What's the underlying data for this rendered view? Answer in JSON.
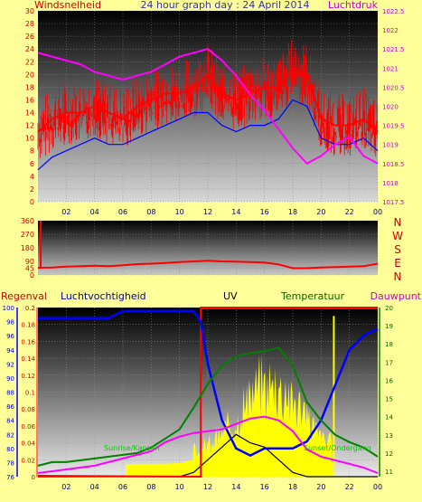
{
  "chart_data": [
    {
      "type": "line",
      "title": "24 hour graph day : 24 April 2014",
      "ylabel_left": "Windsnelheid",
      "ylabel_right": "Luchtdruk",
      "x_ticks": [
        "02",
        "04",
        "06",
        "08",
        "10",
        "12",
        "14",
        "16",
        "18",
        "20",
        "22",
        "00"
      ],
      "y_left_ticks": [
        "0",
        "2",
        "4",
        "6",
        "8",
        "10",
        "12",
        "14",
        "16",
        "18",
        "20",
        "22",
        "24",
        "26",
        "28",
        "30"
      ],
      "y_left_top_label": "30",
      "y_right_ticks": [
        "1017.5",
        "1018",
        "1018.5",
        "1019",
        "1019.5",
        "1020",
        "1020.5",
        "1021",
        "1021.5",
        "1022",
        "1022.5"
      ],
      "y_left_range": [
        0,
        30
      ],
      "y_right_range": [
        1017.5,
        1022.5
      ],
      "grid": true,
      "series": [
        {
          "name": "Windsnelheid",
          "color": "#ff0000",
          "x": [
            0,
            1,
            2,
            3,
            4,
            5,
            6,
            7,
            8,
            9,
            10,
            11,
            12,
            13,
            14,
            15,
            16,
            17,
            18,
            19,
            20,
            21,
            22,
            23,
            24
          ],
          "values": [
            11,
            13,
            14,
            14,
            15,
            14,
            13,
            15,
            16,
            17,
            17,
            18,
            20,
            17,
            16,
            17,
            18,
            18,
            21,
            20,
            13,
            12,
            12,
            13,
            11
          ]
        },
        {
          "color": "#0000ff",
          "x": [
            0,
            1,
            2,
            3,
            4,
            5,
            6,
            7,
            8,
            9,
            10,
            11,
            12,
            13,
            14,
            15,
            16,
            17,
            18,
            19,
            20,
            21,
            22,
            23,
            24
          ],
          "values": [
            5,
            7,
            8,
            9,
            10,
            9,
            9,
            10,
            11,
            12,
            13,
            14,
            14,
            12,
            11,
            12,
            12,
            13,
            16,
            15,
            10,
            9,
            9,
            10,
            8
          ]
        },
        {
          "name": "Luchtdruk",
          "color": "#ff00ff",
          "x": [
            0,
            1,
            2,
            3,
            4,
            5,
            6,
            7,
            8,
            9,
            10,
            11,
            12,
            13,
            14,
            15,
            16,
            17,
            18,
            19,
            20,
            21,
            22,
            23,
            24
          ],
          "values": [
            1021.4,
            1021.3,
            1021.2,
            1021.1,
            1020.9,
            1020.8,
            1020.7,
            1020.8,
            1020.9,
            1021.1,
            1021.3,
            1021.4,
            1021.5,
            1021.2,
            1020.8,
            1020.3,
            1019.9,
            1019.4,
            1018.9,
            1018.5,
            1018.7,
            1019.0,
            1019.2,
            1018.7,
            1018.5
          ]
        }
      ]
    },
    {
      "type": "line",
      "ylabel_left": "",
      "y_left_ticks": [
        "0",
        "45",
        "90",
        "180",
        "270",
        "360"
      ],
      "y_right_labels": [
        "N",
        "W",
        "S",
        "E",
        "N"
      ],
      "y_left_range": [
        0,
        360
      ],
      "series": [
        {
          "color": "#ff0000",
          "x": [
            0,
            1,
            2,
            3,
            4,
            5,
            6,
            7,
            8,
            9,
            10,
            11,
            12,
            13,
            14,
            15,
            16,
            17,
            18,
            19,
            20,
            21,
            22,
            23,
            24
          ],
          "values": [
            48,
            50,
            55,
            58,
            62,
            58,
            65,
            72,
            75,
            80,
            85,
            90,
            95,
            90,
            88,
            85,
            82,
            70,
            45,
            45,
            50,
            52,
            55,
            58,
            75
          ]
        }
      ]
    },
    {
      "type": "line",
      "labels": {
        "rain": "Regenval",
        "hum": "Luchtvochtigheid",
        "uv": "UV",
        "temp": "Temperatuur",
        "dew": "Dauwpunt"
      },
      "annotations": {
        "sunrise": "Sunrise/Kansen",
        "sunset": "Sunset/Ondergang"
      },
      "y_rain_ticks": [
        "0",
        "0.02",
        "0.04",
        "0.06",
        "0.08",
        "0.1",
        "0.12",
        "0.14",
        "0.16",
        "0.18",
        "0.2"
      ],
      "y_hum_ticks": [
        "76",
        "78",
        "80",
        "82",
        "84",
        "86",
        "88",
        "90",
        "92",
        "94",
        "96",
        "98",
        "100"
      ],
      "y_temp_ticks": [
        "11",
        "12",
        "13",
        "14",
        "15",
        "16",
        "17",
        "18",
        "19",
        "20"
      ],
      "y_hum_range": [
        76,
        100
      ],
      "y_temp_range": [
        10.7,
        20
      ],
      "series": [
        {
          "name": "Luchtvochtigheid",
          "color": "#0000ff",
          "x": [
            0,
            1,
            2,
            3,
            4,
            5,
            6,
            7,
            8,
            9,
            10,
            11,
            11.5,
            12,
            13,
            14,
            15,
            16,
            17,
            18,
            19,
            20,
            21,
            22,
            23,
            24
          ],
          "values": [
            98.5,
            98.5,
            98.5,
            98.5,
            98.5,
            98.5,
            99.5,
            99.5,
            99.5,
            99.5,
            99.5,
            99.5,
            98,
            92,
            84,
            80,
            79,
            80,
            80,
            80,
            81,
            84,
            89,
            94,
            96,
            97
          ]
        },
        {
          "name": "Temperatuur",
          "color": "#008000",
          "x": [
            0,
            1,
            2,
            3,
            4,
            5,
            6,
            7,
            8,
            9,
            10,
            11,
            12,
            13,
            14,
            15,
            16,
            17,
            18,
            19,
            20,
            21,
            22,
            23,
            24
          ],
          "values": [
            11.3,
            11.5,
            11.5,
            11.6,
            11.7,
            11.8,
            11.9,
            12.0,
            12.3,
            12.8,
            13.3,
            14.5,
            15.8,
            16.8,
            17.3,
            17.5,
            17.6,
            17.8,
            16.8,
            14.8,
            13.8,
            13.0,
            12.6,
            12.3,
            11.8
          ]
        },
        {
          "name": "Dauwpunt",
          "color": "#ff00ff",
          "x": [
            0,
            1,
            2,
            3,
            4,
            5,
            6,
            7,
            8,
            9,
            10,
            11,
            12,
            13,
            14,
            15,
            16,
            17,
            18,
            19,
            20,
            21,
            22,
            23,
            24
          ],
          "values": [
            10.9,
            11.0,
            11.1,
            11.2,
            11.3,
            11.5,
            11.7,
            11.9,
            12.1,
            12.6,
            12.9,
            13.1,
            13.2,
            13.3,
            13.6,
            13.9,
            14.0,
            13.8,
            13.2,
            12.2,
            11.8,
            11.6,
            11.4,
            11.2,
            10.9
          ]
        },
        {
          "name": "UV",
          "color": "#000000",
          "x": [
            0,
            6,
            8,
            10,
            11,
            12,
            13,
            14,
            15,
            16,
            17,
            18,
            19,
            20,
            24
          ],
          "values": [
            0,
            0,
            0,
            0,
            0.005,
            0.02,
            0.035,
            0.05,
            0.04,
            0.035,
            0.02,
            0.005,
            0,
            0,
            0
          ]
        },
        {
          "name": "Regenval",
          "color": "#ff0000",
          "x": [
            0,
            11.5,
            11.5,
            24
          ],
          "values": [
            0,
            0,
            0.2,
            0.2
          ]
        }
      ]
    }
  ]
}
